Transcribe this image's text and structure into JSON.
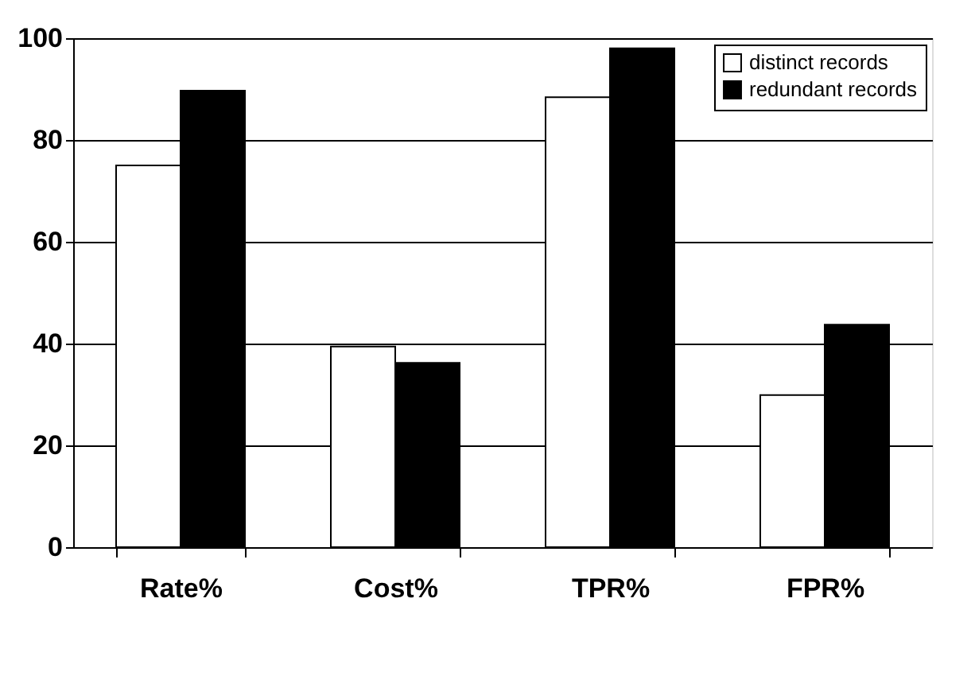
{
  "chart_data": {
    "type": "bar",
    "categories": [
      "Rate%",
      "Cost%",
      "TPR%",
      "FPR%"
    ],
    "series": [
      {
        "name": "distinct records",
        "color": "#ffffff",
        "values": [
          75.0,
          39.4,
          88.4,
          29.9
        ]
      },
      {
        "name": "redundant records",
        "color": "#000000",
        "values": [
          89.7,
          36.2,
          98.0,
          43.7
        ]
      }
    ],
    "ylim": [
      0,
      100
    ],
    "yticks": [
      0,
      20,
      40,
      60,
      80,
      100
    ],
    "grid": "y",
    "legend": "top right"
  }
}
